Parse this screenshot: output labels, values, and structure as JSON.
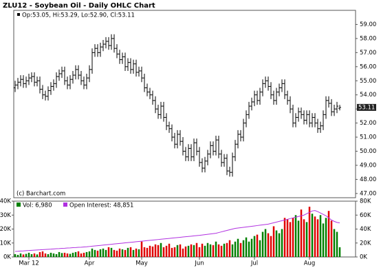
{
  "chart_data": [
    {
      "type": "ohlc",
      "title": "ZLU12 - Soybean Oil - Daily OHLC Chart",
      "info": "Op:53.05, Hi:53.29, Lo:52.90, Cl:53.11",
      "source": "(c) Barchart.com",
      "color": "#000000",
      "open": [
        54.5,
        54.7,
        54.9,
        55.1,
        54.8,
        55.0,
        55.2,
        55.3,
        54.9,
        55.0,
        54.4,
        54.0,
        53.9,
        54.3,
        54.6,
        54.8,
        55.3,
        55.5,
        55.7,
        55.0,
        54.7,
        55.1,
        55.4,
        55.8,
        55.4,
        55.0,
        54.7,
        55.2,
        55.8,
        57.0,
        57.3,
        57.0,
        57.4,
        57.6,
        57.8,
        57.5,
        58.0,
        57.3,
        56.9,
        56.5,
        56.7,
        56.0,
        56.3,
        55.8,
        56.2,
        55.6,
        55.7,
        55.2,
        54.5,
        54.2,
        54.0,
        53.6,
        53.0,
        52.6,
        53.2,
        52.4,
        51.8,
        51.6,
        51.0,
        50.5,
        51.2,
        50.7,
        50.0,
        49.6,
        50.2,
        49.6,
        50.6,
        50.0,
        49.2,
        48.8,
        49.3,
        49.8,
        50.4,
        50.0,
        50.8,
        49.8,
        49.2,
        49.5,
        48.6,
        48.5,
        49.6,
        50.5,
        51.2,
        51.0,
        52.0,
        52.6,
        53.2,
        53.5,
        54.0,
        53.6,
        54.2,
        54.8,
        55.0,
        54.6,
        54.0,
        53.6,
        54.2,
        54.5,
        54.8,
        54.0,
        53.6,
        53.0,
        52.0,
        52.4,
        52.8,
        52.6,
        52.2,
        52.6,
        52.0,
        52.4,
        52.0,
        51.6,
        51.8,
        52.6,
        53.6,
        53.4,
        52.8,
        53.0,
        53.05
      ],
      "high": [
        55.0,
        55.2,
        55.4,
        55.4,
        55.3,
        55.5,
        55.6,
        55.6,
        55.3,
        55.3,
        54.7,
        54.3,
        54.6,
        54.9,
        55.1,
        55.6,
        55.8,
        56.0,
        56.0,
        55.3,
        55.4,
        55.7,
        56.1,
        56.1,
        55.7,
        55.3,
        55.5,
        56.1,
        57.3,
        57.6,
        57.6,
        57.7,
        57.9,
        58.1,
        58.1,
        58.3,
        58.3,
        57.6,
        57.2,
        57.0,
        57.0,
        56.6,
        56.6,
        56.5,
        56.5,
        56.0,
        56.0,
        55.5,
        54.8,
        54.5,
        54.3,
        53.9,
        53.3,
        53.5,
        53.5,
        52.7,
        52.1,
        51.9,
        51.3,
        51.5,
        51.5,
        51.0,
        50.3,
        50.5,
        50.5,
        50.9,
        50.9,
        50.3,
        49.5,
        49.6,
        50.1,
        50.7,
        50.7,
        51.1,
        51.1,
        50.1,
        49.8,
        49.8,
        48.9,
        49.9,
        50.8,
        51.5,
        51.5,
        52.3,
        52.9,
        53.5,
        53.8,
        54.3,
        54.3,
        54.5,
        55.1,
        55.3,
        55.3,
        54.9,
        54.3,
        54.5,
        54.8,
        55.1,
        55.1,
        54.3,
        53.9,
        53.3,
        52.7,
        53.1,
        53.1,
        52.9,
        52.9,
        52.9,
        52.7,
        52.7,
        52.3,
        52.1,
        52.9,
        53.9,
        53.9,
        53.7,
        53.3,
        53.5,
        53.29
      ],
      "low": [
        54.2,
        54.4,
        54.6,
        54.5,
        54.5,
        54.7,
        54.9,
        54.6,
        54.6,
        54.1,
        53.7,
        53.6,
        53.6,
        54.0,
        54.3,
        54.5,
        55.0,
        55.2,
        54.7,
        54.4,
        54.4,
        54.8,
        55.1,
        55.1,
        54.7,
        54.4,
        54.4,
        54.9,
        55.5,
        56.7,
        56.7,
        56.7,
        57.1,
        57.3,
        57.2,
        57.2,
        57.0,
        56.6,
        56.2,
        56.2,
        55.7,
        55.7,
        55.5,
        55.5,
        55.3,
        55.3,
        54.9,
        54.2,
        53.9,
        53.7,
        53.3,
        52.7,
        52.3,
        52.3,
        52.1,
        51.5,
        51.3,
        50.7,
        50.2,
        50.2,
        50.4,
        49.7,
        49.3,
        49.3,
        49.3,
        49.3,
        49.7,
        48.9,
        48.5,
        48.5,
        49.0,
        49.5,
        49.7,
        49.7,
        49.5,
        48.9,
        48.9,
        48.3,
        48.2,
        48.2,
        49.3,
        50.2,
        50.7,
        50.7,
        51.7,
        52.3,
        52.9,
        53.2,
        53.3,
        53.3,
        53.9,
        54.5,
        54.3,
        53.7,
        53.3,
        53.3,
        53.9,
        54.2,
        53.7,
        53.3,
        52.7,
        51.7,
        51.7,
        52.1,
        52.3,
        51.9,
        51.9,
        51.7,
        51.7,
        51.7,
        51.3,
        51.3,
        51.5,
        52.3,
        53.1,
        52.5,
        52.5,
        52.7,
        52.9
      ],
      "close": [
        54.7,
        54.9,
        55.1,
        54.8,
        55.0,
        55.2,
        55.3,
        54.9,
        55.0,
        54.4,
        54.0,
        53.9,
        54.3,
        54.6,
        54.8,
        55.3,
        55.5,
        55.7,
        55.0,
        54.7,
        55.1,
        55.4,
        55.8,
        55.4,
        55.0,
        54.7,
        55.2,
        55.8,
        57.0,
        57.3,
        57.0,
        57.4,
        57.6,
        57.8,
        57.5,
        58.0,
        57.3,
        56.9,
        56.5,
        56.7,
        56.0,
        56.3,
        55.8,
        56.2,
        55.6,
        55.7,
        55.2,
        54.5,
        54.2,
        54.0,
        53.6,
        53.0,
        52.6,
        53.2,
        52.4,
        51.8,
        51.6,
        51.0,
        50.5,
        51.2,
        50.7,
        50.0,
        49.6,
        50.2,
        49.6,
        50.6,
        50.0,
        49.2,
        48.8,
        49.3,
        49.8,
        50.4,
        50.0,
        50.8,
        49.8,
        49.2,
        49.5,
        48.6,
        48.5,
        49.6,
        50.5,
        51.2,
        51.0,
        52.0,
        52.6,
        53.2,
        53.5,
        54.0,
        53.6,
        54.2,
        54.8,
        55.0,
        54.6,
        54.0,
        53.6,
        54.2,
        54.5,
        54.8,
        54.0,
        53.6,
        53.0,
        52.0,
        52.4,
        52.8,
        52.6,
        52.2,
        52.6,
        52.0,
        52.4,
        52.0,
        51.6,
        51.8,
        52.6,
        53.6,
        53.4,
        52.8,
        53.0,
        53.2,
        53.11
      ],
      "last_label": "53.11",
      "ylim": [
        46.7,
        60.0
      ],
      "yticks": [
        {
          "value": 47,
          "label": "47.00"
        },
        {
          "value": 48,
          "label": "48.00"
        },
        {
          "value": 49,
          "label": "49.00"
        },
        {
          "value": 50,
          "label": "50.00"
        },
        {
          "value": 51,
          "label": "51.00"
        },
        {
          "value": 52,
          "label": "52.00"
        },
        {
          "value": 53,
          "label": "53.00"
        },
        {
          "value": 54,
          "label": "54.00"
        },
        {
          "value": 55,
          "label": "55.00"
        },
        {
          "value": 56,
          "label": "56.00"
        },
        {
          "value": 57,
          "label": "57.00"
        },
        {
          "value": 58,
          "label": "58.00"
        },
        {
          "value": 59,
          "label": "59.00"
        }
      ]
    },
    {
      "type": "volume",
      "categories": [
        null,
        null,
        null,
        null,
        null,
        "Mar 12",
        null,
        null,
        null,
        null,
        null,
        null,
        null,
        null,
        null,
        null,
        null,
        null,
        null,
        null,
        null,
        null,
        null,
        null,
        null,
        null,
        null,
        "Apr",
        null,
        null,
        null,
        null,
        null,
        null,
        null,
        null,
        null,
        null,
        null,
        null,
        null,
        null,
        null,
        null,
        null,
        null,
        "May",
        null,
        null,
        null,
        null,
        null,
        null,
        null,
        null,
        null,
        null,
        null,
        null,
        null,
        null,
        null,
        null,
        null,
        null,
        null,
        null,
        "Jun",
        null,
        null,
        null,
        null,
        null,
        null,
        null,
        null,
        null,
        null,
        null,
        null,
        null,
        null,
        null,
        null,
        null,
        null,
        null,
        "Jul",
        null,
        null,
        null,
        null,
        null,
        null,
        null,
        null,
        null,
        null,
        null,
        null,
        null,
        null,
        null,
        null,
        null,
        null,
        null,
        "Aug",
        null,
        null,
        null,
        null,
        null,
        null,
        null,
        null,
        null,
        null,
        null
      ],
      "down_color": "#e00000",
      "series": [
        {
          "name": "Vol: 6,980",
          "color": "#008000",
          "values": [
            2000,
            1500,
            2500,
            1800,
            2200,
            3000,
            2000,
            2500,
            1800,
            3500,
            4000,
            2500,
            2000,
            3000,
            2500,
            2000,
            3500,
            2800,
            3000,
            2500,
            2200,
            3000,
            3500,
            4000,
            2500,
            3000,
            3500,
            4000,
            6000,
            5000,
            4500,
            5500,
            6000,
            5000,
            7000,
            6500,
            5000,
            4500,
            6000,
            5500,
            5000,
            6500,
            7000,
            5000,
            6000,
            5500,
            11000,
            7000,
            6500,
            8000,
            7500,
            9000,
            8500,
            10000,
            7000,
            8000,
            9500,
            6500,
            7000,
            8500,
            9000,
            6000,
            7500,
            8000,
            9000,
            8500,
            10000,
            7000,
            9500,
            8000,
            10000,
            9000,
            8500,
            11000,
            9000,
            8000,
            9500,
            10000,
            12000,
            9000,
            11000,
            13000,
            10000,
            12000,
            14000,
            11000,
            13000,
            15000,
            16000,
            12000,
            18000,
            20000,
            17000,
            15000,
            22000,
            19000,
            17000,
            20000,
            28000,
            27000,
            25000,
            28000,
            30000,
            26000,
            34000,
            27000,
            25000,
            36000,
            31000,
            29000,
            27000,
            30000,
            24000,
            28000,
            33000,
            26000,
            20000,
            18000,
            6980
          ]
        },
        {
          "name": "Open Interest: 48,851",
          "color": "#b030e0",
          "axis": "y2",
          "values": [
            8000,
            8200,
            8500,
            8700,
            9000,
            9200,
            9500,
            9800,
            10000,
            10200,
            10500,
            10800,
            11000,
            11200,
            11500,
            11800,
            12000,
            12300,
            12500,
            12800,
            13000,
            13300,
            13500,
            13800,
            14000,
            14300,
            14600,
            15000,
            15400,
            15800,
            16200,
            16600,
            17000,
            17400,
            17800,
            18200,
            18600,
            19000,
            19400,
            19800,
            20200,
            20600,
            21000,
            21400,
            21800,
            22200,
            22600,
            23000,
            23400,
            23800,
            24200,
            24600,
            25000,
            25400,
            25800,
            26200,
            26600,
            27000,
            27400,
            27800,
            28200,
            28600,
            29000,
            29400,
            29800,
            30200,
            30600,
            31000,
            31500,
            32000,
            32500,
            33000,
            33500,
            34000,
            35000,
            36000,
            37000,
            38000,
            39000,
            40000,
            41000,
            41500,
            42000,
            42500,
            43000,
            43500,
            44000,
            44500,
            45000,
            45500,
            46000,
            46500,
            47000,
            48000,
            49000,
            50000,
            51000,
            52000,
            53000,
            54000,
            55000,
            56000,
            57000,
            58000,
            59000,
            60000,
            62000,
            64000,
            66000,
            66500,
            65000,
            63000,
            61000,
            59000,
            56000,
            53000,
            51000,
            49500,
            48851
          ]
        }
      ],
      "ylim": [
        0,
        40000
      ],
      "yticks": [
        {
          "value": 0,
          "label": "0K"
        },
        {
          "value": 10000,
          "label": "10K"
        },
        {
          "value": 20000,
          "label": "20K"
        },
        {
          "value": 30000,
          "label": "30K"
        },
        {
          "value": 40000,
          "label": "40K"
        }
      ],
      "y2lim": [
        0,
        80000
      ],
      "y2ticks": [
        {
          "value": 0,
          "label": "0K"
        },
        {
          "value": 20000,
          "label": "20K"
        },
        {
          "value": 40000,
          "label": "40K"
        },
        {
          "value": 60000,
          "label": "60K"
        },
        {
          "value": 80000,
          "label": "80K"
        }
      ]
    }
  ]
}
